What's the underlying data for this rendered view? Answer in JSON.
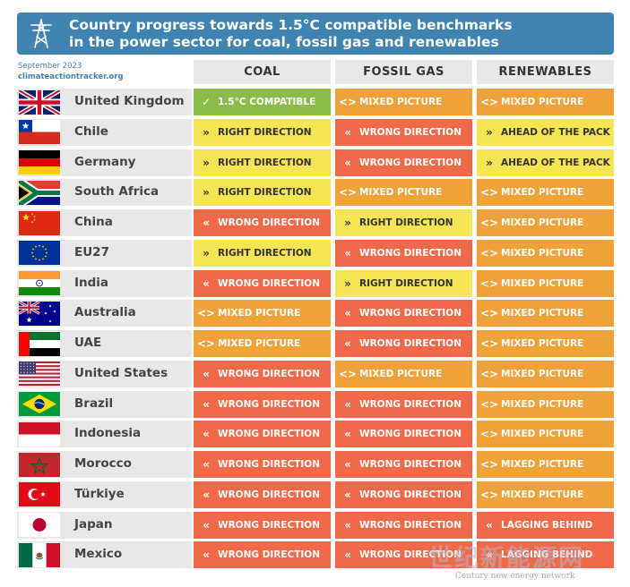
{
  "header": {
    "title_line1": "Country progress towards 1.5°C compatible benchmarks",
    "title_line2": "in the power sector for coal, fossil gas and renewables"
  },
  "meta": {
    "date": "September 2023",
    "site": "climateactiontracker.org"
  },
  "columns": [
    "COAL",
    "FOSSIL GAS",
    "RENEWABLES"
  ],
  "status_styles": {
    "compatible": {
      "bg": "#8dbb4a",
      "fg": "#ffffff",
      "icon": "check-icon",
      "glyph": "✓"
    },
    "mixed": {
      "bg": "#f0a23a",
      "fg": "#ffffff",
      "icon": "diamond-arrows-icon",
      "glyph": "<>"
    },
    "wrong": {
      "bg": "#f06a4a",
      "fg": "#ffffff",
      "icon": "double-chevron-left-icon",
      "glyph": "«"
    },
    "right": {
      "bg": "#f5e553",
      "fg": "#333333",
      "icon": "double-chevron-right-icon",
      "glyph": "»"
    },
    "ahead": {
      "bg": "#f5e553",
      "fg": "#333333",
      "icon": "double-chevron-right-icon",
      "glyph": "»"
    },
    "lagging": {
      "bg": "#f06a4a",
      "fg": "#ffffff",
      "icon": "double-chevron-left-icon",
      "glyph": "«"
    }
  },
  "rows": [
    {
      "country": "United Kingdom",
      "flag": "uk",
      "cells": [
        {
          "s": "compatible",
          "label": "1.5°C COMPATIBLE"
        },
        {
          "s": "mixed",
          "label": "MIXED PICTURE"
        },
        {
          "s": "mixed",
          "label": "MIXED PICTURE"
        }
      ]
    },
    {
      "country": "Chile",
      "flag": "chile",
      "cells": [
        {
          "s": "right",
          "label": "RIGHT DIRECTION"
        },
        {
          "s": "wrong",
          "label": "WRONG DIRECTION"
        },
        {
          "s": "ahead",
          "label": "AHEAD OF THE PACK"
        }
      ]
    },
    {
      "country": "Germany",
      "flag": "germany",
      "cells": [
        {
          "s": "right",
          "label": "RIGHT DIRECTION"
        },
        {
          "s": "wrong",
          "label": "WRONG DIRECTION"
        },
        {
          "s": "ahead",
          "label": "AHEAD OF THE PACK"
        }
      ]
    },
    {
      "country": "South Africa",
      "flag": "southafrica",
      "cells": [
        {
          "s": "right",
          "label": "RIGHT DIRECTION"
        },
        {
          "s": "mixed",
          "label": "MIXED PICTURE"
        },
        {
          "s": "mixed",
          "label": "MIXED PICTURE"
        }
      ]
    },
    {
      "country": "China",
      "flag": "china",
      "cells": [
        {
          "s": "wrong",
          "label": "WRONG DIRECTION"
        },
        {
          "s": "right",
          "label": "RIGHT DIRECTION"
        },
        {
          "s": "mixed",
          "label": "MIXED PICTURE"
        }
      ]
    },
    {
      "country": "EU27",
      "flag": "eu",
      "cells": [
        {
          "s": "right",
          "label": "RIGHT DIRECTION"
        },
        {
          "s": "wrong",
          "label": "WRONG DIRECTION"
        },
        {
          "s": "mixed",
          "label": "MIXED PICTURE"
        }
      ]
    },
    {
      "country": "India",
      "flag": "india",
      "cells": [
        {
          "s": "wrong",
          "label": "WRONG DIRECTION"
        },
        {
          "s": "right",
          "label": "RIGHT DIRECTION"
        },
        {
          "s": "mixed",
          "label": "MIXED PICTURE"
        }
      ]
    },
    {
      "country": "Australia",
      "flag": "australia",
      "cells": [
        {
          "s": "mixed",
          "label": "MIXED PICTURE"
        },
        {
          "s": "wrong",
          "label": "WRONG DIRECTION"
        },
        {
          "s": "mixed",
          "label": "MIXED PICTURE"
        }
      ]
    },
    {
      "country": "UAE",
      "flag": "uae",
      "cells": [
        {
          "s": "mixed",
          "label": "MIXED PICTURE"
        },
        {
          "s": "wrong",
          "label": "WRONG DIRECTION"
        },
        {
          "s": "mixed",
          "label": "MIXED PICTURE"
        }
      ]
    },
    {
      "country": "United States",
      "flag": "us",
      "cells": [
        {
          "s": "wrong",
          "label": "WRONG DIRECTION"
        },
        {
          "s": "mixed",
          "label": "MIXED PICTURE"
        },
        {
          "s": "mixed",
          "label": "MIXED PICTURE"
        }
      ]
    },
    {
      "country": "Brazil",
      "flag": "brazil",
      "cells": [
        {
          "s": "wrong",
          "label": "WRONG DIRECTION"
        },
        {
          "s": "wrong",
          "label": "WRONG DIRECTION"
        },
        {
          "s": "mixed",
          "label": "MIXED PICTURE"
        }
      ]
    },
    {
      "country": "Indonesia",
      "flag": "indonesia",
      "cells": [
        {
          "s": "wrong",
          "label": "WRONG DIRECTION"
        },
        {
          "s": "wrong",
          "label": "WRONG DIRECTION"
        },
        {
          "s": "mixed",
          "label": "MIXED PICTURE"
        }
      ]
    },
    {
      "country": "Morocco",
      "flag": "morocco",
      "cells": [
        {
          "s": "wrong",
          "label": "WRONG DIRECTION"
        },
        {
          "s": "wrong",
          "label": "WRONG DIRECTION"
        },
        {
          "s": "mixed",
          "label": "MIXED PICTURE"
        }
      ]
    },
    {
      "country": "Türkiye",
      "flag": "turkiye",
      "cells": [
        {
          "s": "wrong",
          "label": "WRONG DIRECTION"
        },
        {
          "s": "wrong",
          "label": "WRONG DIRECTION"
        },
        {
          "s": "mixed",
          "label": "MIXED PICTURE"
        }
      ]
    },
    {
      "country": "Japan",
      "flag": "japan",
      "cells": [
        {
          "s": "wrong",
          "label": "WRONG DIRECTION"
        },
        {
          "s": "wrong",
          "label": "WRONG DIRECTION"
        },
        {
          "s": "lagging",
          "label": "LAGGING BEHIND"
        }
      ]
    },
    {
      "country": "Mexico",
      "flag": "mexico",
      "cells": [
        {
          "s": "wrong",
          "label": "WRONG DIRECTION"
        },
        {
          "s": "wrong",
          "label": "WRONG DIRECTION"
        },
        {
          "s": "lagging",
          "label": "LAGGING BEHIND"
        }
      ]
    }
  ],
  "watermark": {
    "text": "世纪新能源网",
    "subtext": "Century new energy network"
  }
}
